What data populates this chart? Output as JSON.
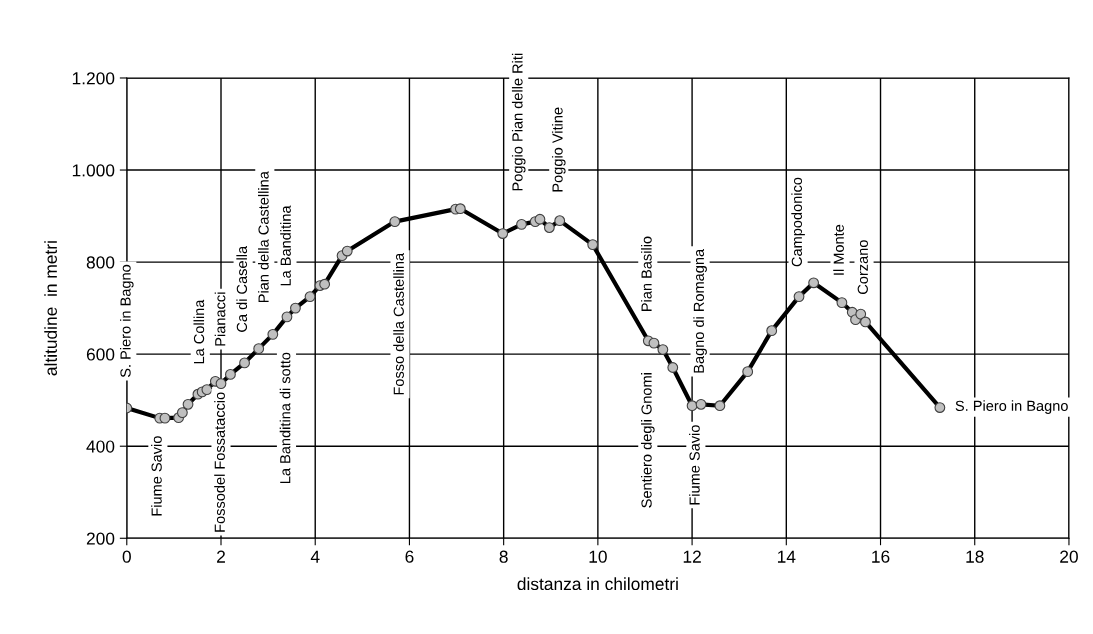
{
  "chart_data": {
    "type": "line",
    "xlabel": "distanza in chilometri",
    "ylabel": "altitudine  in metri",
    "xlim": [
      0,
      20
    ],
    "xticks": [
      0,
      2,
      4,
      6,
      8,
      10,
      12,
      14,
      16,
      18,
      20
    ],
    "ylim": [
      200,
      1200
    ],
    "yticks": [
      200,
      400,
      600,
      800,
      {
        "value": 1000,
        "label": "1.000"
      },
      {
        "value": 1200,
        "label": "1.200"
      }
    ],
    "grid": true,
    "marker": "circle",
    "line_style": "solid",
    "series": [
      {
        "color": "#000000",
        "x": [
          0,
          0.7,
          0.81,
          1.1,
          1.18,
          1.3,
          1.51,
          1.6,
          1.7,
          1.88,
          2.0,
          2.2,
          2.5,
          2.8,
          3.1,
          3.4,
          3.58,
          3.89,
          4.1,
          4.2,
          4.57,
          4.68,
          5.69,
          6.98,
          7.08,
          7.98,
          8.38,
          8.67,
          8.77,
          8.97,
          9.19,
          9.89,
          11.07,
          11.19,
          11.38,
          11.59,
          12.0,
          12.19,
          12.59,
          13.18,
          13.69,
          14.27,
          14.58,
          15.18,
          15.4,
          15.47,
          15.58,
          15.68,
          17.26
        ],
        "values": [
          483,
          461,
          461,
          462,
          473,
          491,
          513,
          518,
          523,
          541,
          536,
          556,
          581,
          612,
          643,
          681,
          700,
          725,
          749,
          752,
          814,
          824,
          888,
          915,
          916,
          862,
          882,
          888,
          893,
          875,
          890,
          838,
          629,
          624,
          610,
          571,
          488,
          491,
          488,
          562,
          651,
          725,
          755,
          712,
          691,
          675,
          687,
          670,
          484
        ]
      }
    ],
    "annotations": [
      "S. Piero in Bagno",
      "Fiume Savio",
      "La Collina",
      "Pianacci",
      "Fossodel Fossataccio",
      "Ca di Casella",
      "Pian della Castellina",
      "La Banditina",
      "La Banditina di sotto",
      "Fosso della Castellina",
      "Poggio Pian delle Riti",
      "Poggio Vitine",
      "Pian Basilio",
      "Sentiero degli Gnomi",
      "Bagno di Romagna",
      "Fiume Savio",
      "Campodonico",
      "Il Monte",
      "Corzano",
      "S. Piero in Bagno"
    ]
  }
}
